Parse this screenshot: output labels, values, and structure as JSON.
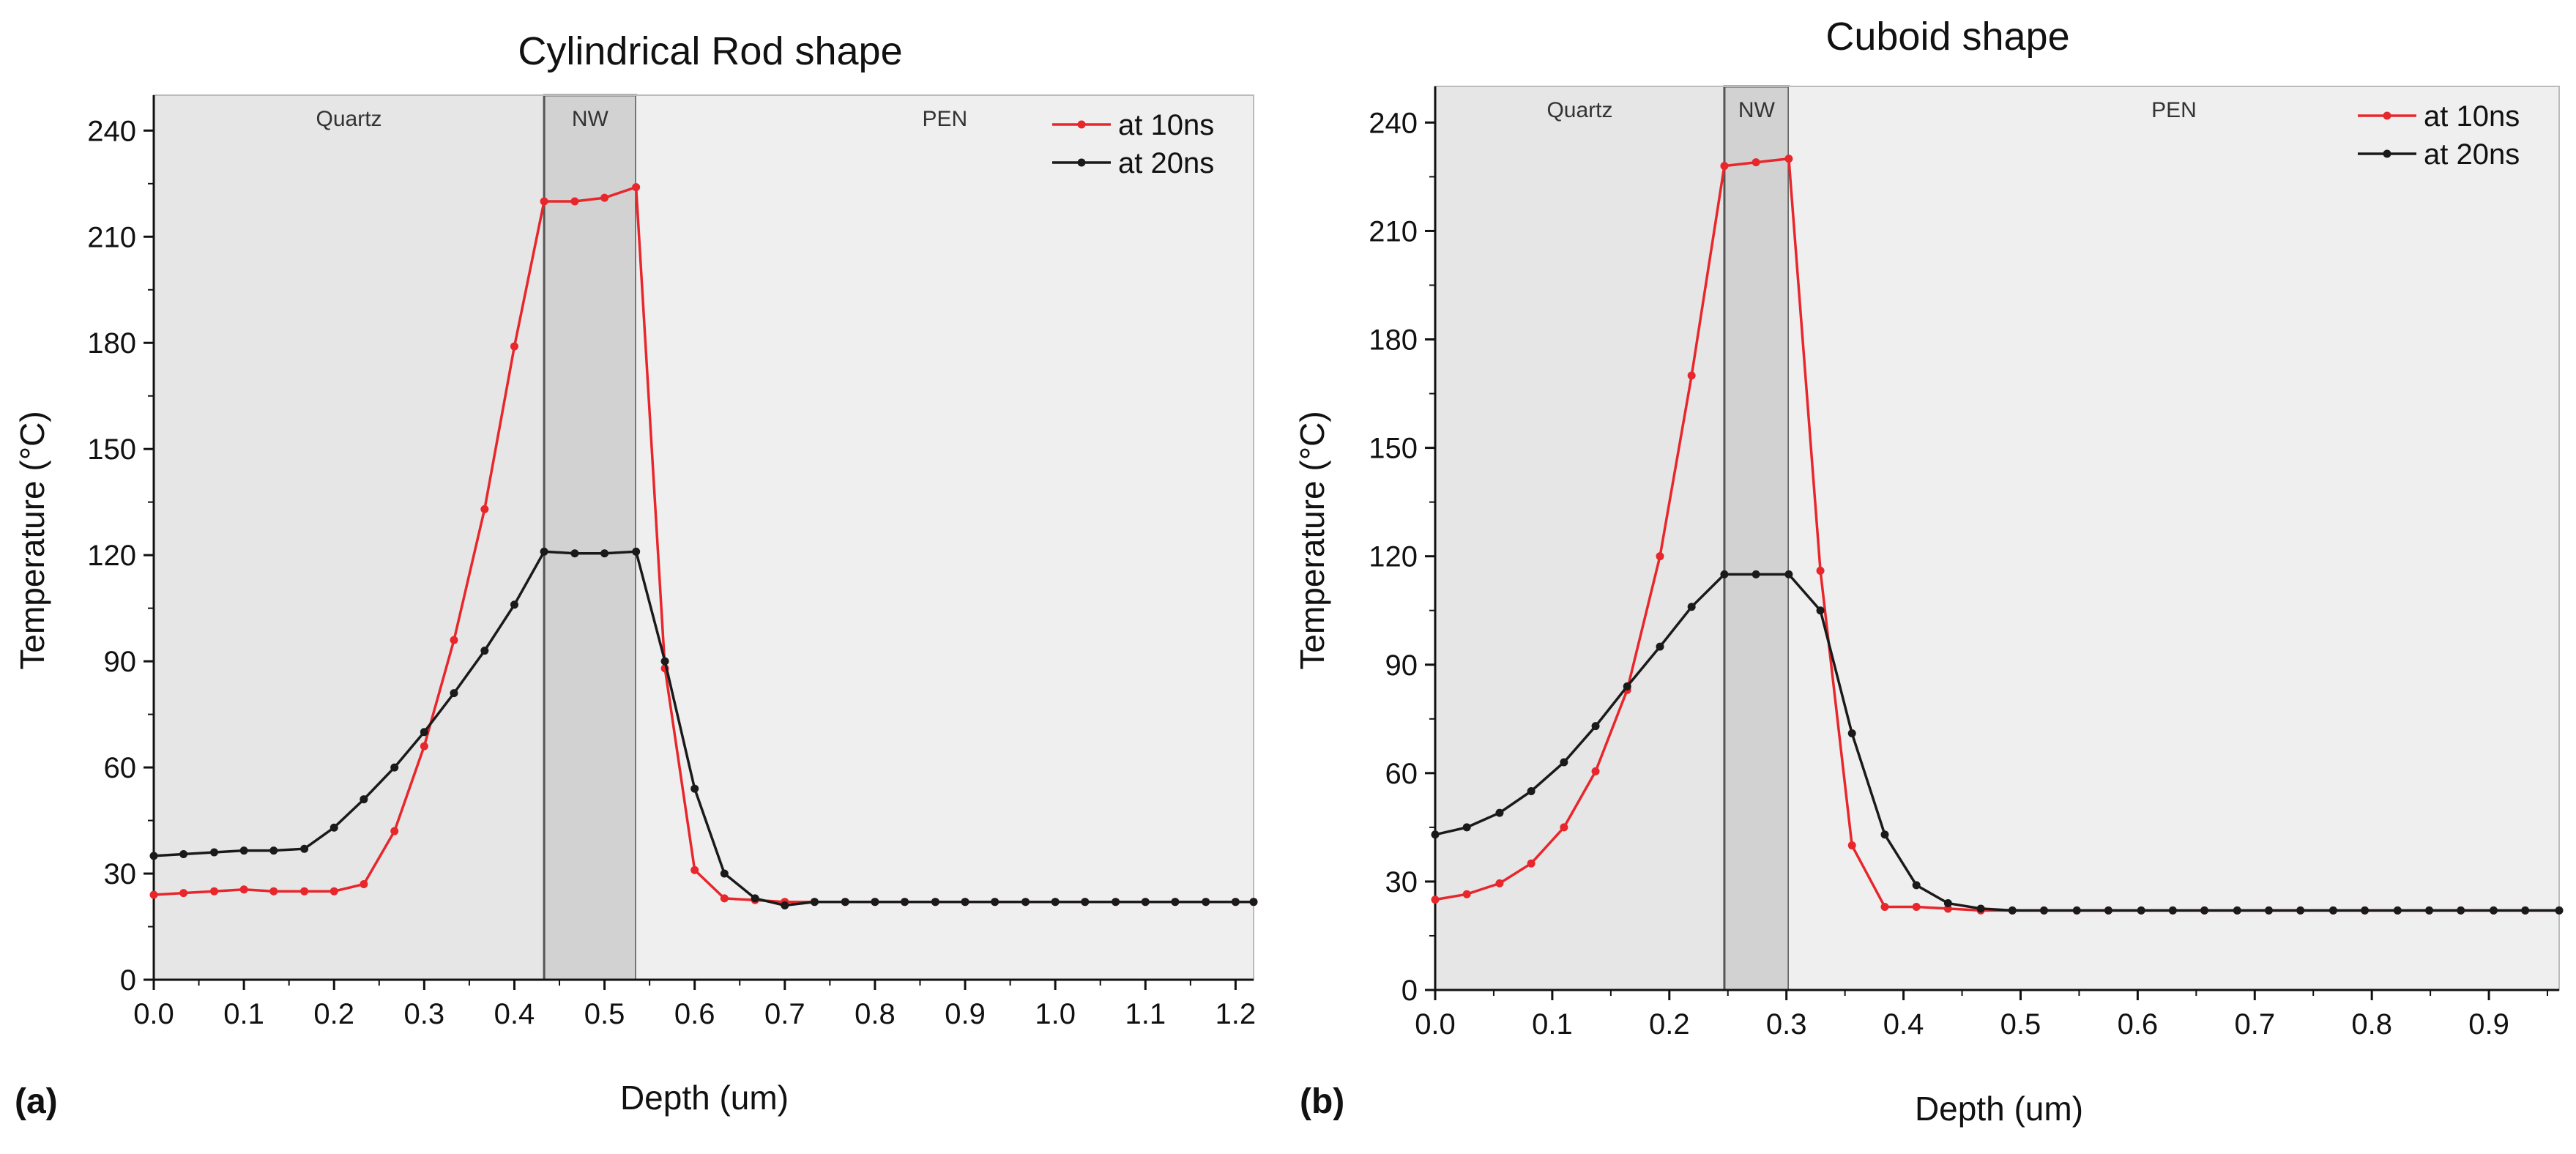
{
  "chart_data": [
    {
      "panel_label": "(a)",
      "type": "line",
      "title": "Cylindrical Rod shape",
      "xlabel": "Depth (um)",
      "ylabel": "Temperature (°C)",
      "xlim": [
        0.0,
        1.22
      ],
      "ylim": [
        0,
        250
      ],
      "xticks": [
        "0.0",
        "0.1",
        "0.2",
        "0.3",
        "0.4",
        "0.5",
        "0.6",
        "0.7",
        "0.8",
        "0.9",
        "1.0",
        "1.1",
        "1.2"
      ],
      "yticks": [
        "0",
        "30",
        "60",
        "90",
        "120",
        "150",
        "180",
        "210",
        "240"
      ],
      "regions": [
        {
          "label": "Quartz",
          "x0": 0.0,
          "x1": 0.433,
          "fill": "#e6e6e6"
        },
        {
          "label": "NW",
          "x0": 0.433,
          "x1": 0.535,
          "fill": "#d2d2d2"
        },
        {
          "label": "PEN",
          "x0": 0.535,
          "x1": 1.22,
          "fill": "#efefef"
        }
      ],
      "legend_position": "top-right",
      "series": [
        {
          "name": "at 10ns",
          "color": "#e8262b",
          "x": [
            0.0,
            0.033,
            0.067,
            0.1,
            0.133,
            0.167,
            0.2,
            0.233,
            0.267,
            0.3,
            0.333,
            0.367,
            0.4,
            0.433,
            0.467,
            0.5,
            0.535,
            0.567,
            0.6,
            0.633,
            0.667,
            0.7,
            0.733,
            0.767,
            0.8,
            0.833,
            0.867,
            0.9,
            0.933,
            0.967,
            1.0,
            1.033,
            1.067,
            1.1,
            1.133,
            1.167,
            1.2,
            1.22
          ],
          "y": [
            24,
            24.5,
            25,
            25.5,
            25,
            25,
            25,
            27,
            42,
            66,
            96,
            133,
            179,
            220,
            220,
            221,
            224,
            88,
            31,
            23,
            22.5,
            22,
            22,
            22,
            22,
            22,
            22,
            22,
            22,
            22,
            22,
            22,
            22,
            22,
            22,
            22,
            22,
            22
          ]
        },
        {
          "name": "at 20ns",
          "color": "#1a1a1a",
          "x": [
            0.0,
            0.033,
            0.067,
            0.1,
            0.133,
            0.167,
            0.2,
            0.233,
            0.267,
            0.3,
            0.333,
            0.367,
            0.4,
            0.433,
            0.467,
            0.5,
            0.535,
            0.567,
            0.6,
            0.633,
            0.667,
            0.7,
            0.733,
            0.767,
            0.8,
            0.833,
            0.867,
            0.9,
            0.933,
            0.967,
            1.0,
            1.033,
            1.067,
            1.1,
            1.133,
            1.167,
            1.2,
            1.22
          ],
          "y": [
            35,
            35.5,
            36,
            36.5,
            36.5,
            37,
            43,
            51,
            60,
            70,
            81,
            93,
            106,
            121,
            120.5,
            120.5,
            121,
            90,
            54,
            30,
            23,
            21,
            22,
            22,
            22,
            22,
            22,
            22,
            22,
            22,
            22,
            22,
            22,
            22,
            22,
            22,
            22,
            22
          ]
        }
      ]
    },
    {
      "panel_label": "(b)",
      "type": "line",
      "title": "Cuboid shape",
      "xlabel": "Depth (um)",
      "ylabel": "Temperature (°C)",
      "xlim": [
        0.0,
        0.96
      ],
      "ylim": [
        0,
        250
      ],
      "xticks": [
        "0.0",
        "0.1",
        "0.2",
        "0.3",
        "0.4",
        "0.5",
        "0.6",
        "0.7",
        "0.8",
        "0.9"
      ],
      "yticks": [
        "0",
        "30",
        "60",
        "90",
        "120",
        "150",
        "180",
        "210",
        "240"
      ],
      "regions": [
        {
          "label": "Quartz",
          "x0": 0.0,
          "x1": 0.247,
          "fill": "#e6e6e6"
        },
        {
          "label": "NW",
          "x0": 0.247,
          "x1": 0.302,
          "fill": "#d2d2d2"
        },
        {
          "label": "PEN",
          "x0": 0.302,
          "x1": 0.96,
          "fill": "#efefef"
        }
      ],
      "legend_position": "top-right",
      "series": [
        {
          "name": "at 10ns",
          "color": "#e8262b",
          "x": [
            0.0,
            0.027,
            0.055,
            0.082,
            0.11,
            0.137,
            0.164,
            0.192,
            0.219,
            0.247,
            0.274,
            0.302,
            0.329,
            0.356,
            0.384,
            0.411,
            0.438,
            0.466,
            0.493,
            0.52,
            0.548,
            0.575,
            0.603,
            0.63,
            0.657,
            0.685,
            0.712,
            0.739,
            0.767,
            0.794,
            0.822,
            0.849,
            0.876,
            0.904,
            0.931,
            0.96
          ],
          "y": [
            25,
            26.5,
            29.5,
            35,
            45,
            60.5,
            83,
            120,
            170,
            228,
            229,
            230,
            116,
            40,
            23,
            23,
            22.5,
            22,
            22,
            22,
            22,
            22,
            22,
            22,
            22,
            22,
            22,
            22,
            22,
            22,
            22,
            22,
            22,
            22,
            22,
            22
          ]
        },
        {
          "name": "at 20ns",
          "color": "#1a1a1a",
          "x": [
            0.0,
            0.027,
            0.055,
            0.082,
            0.11,
            0.137,
            0.164,
            0.192,
            0.219,
            0.247,
            0.274,
            0.302,
            0.329,
            0.356,
            0.384,
            0.411,
            0.438,
            0.466,
            0.493,
            0.52,
            0.548,
            0.575,
            0.603,
            0.63,
            0.657,
            0.685,
            0.712,
            0.739,
            0.767,
            0.794,
            0.822,
            0.849,
            0.876,
            0.904,
            0.931,
            0.96
          ],
          "y": [
            43,
            45,
            49,
            55,
            63,
            73,
            84,
            95,
            106,
            115,
            115,
            115,
            105,
            71,
            43,
            29,
            24,
            22.5,
            22,
            22,
            22,
            22,
            22,
            22,
            22,
            22,
            22,
            22,
            22,
            22,
            22,
            22,
            22,
            22,
            22,
            22
          ]
        }
      ]
    }
  ]
}
